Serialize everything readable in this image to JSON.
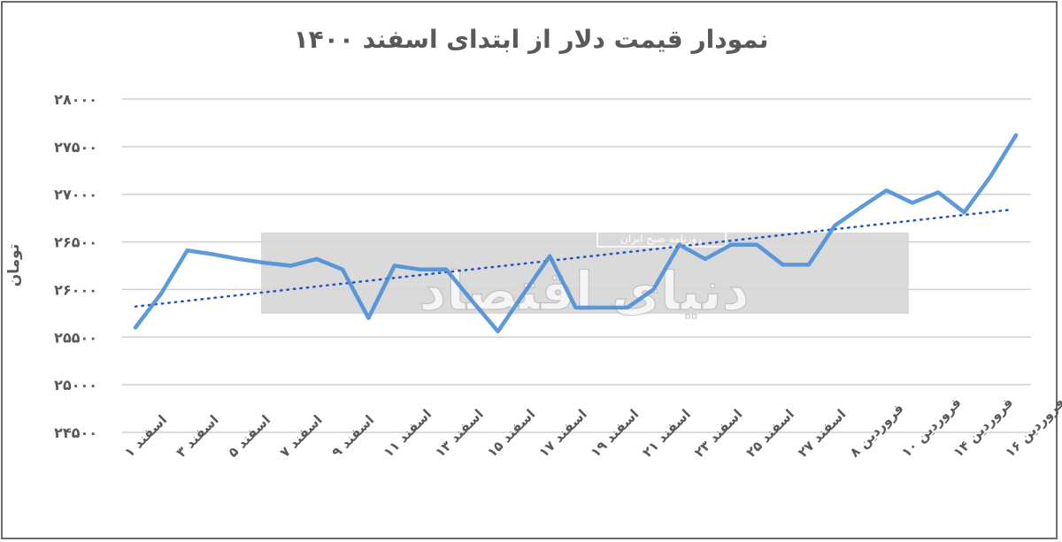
{
  "chart_data": {
    "type": "line",
    "title": "نمودار قیمت دلار از ابتدای اسفند ۱۴۰۰",
    "xlabel": "",
    "ylabel": "تومان",
    "ylim": [
      24500,
      28000
    ],
    "yticks": [
      28000,
      27500,
      27000,
      26500,
      26000,
      25500,
      25000,
      24500
    ],
    "ytick_labels": [
      "۲۸۰۰۰",
      "۲۷۵۰۰",
      "۲۷۰۰۰",
      "۲۶۵۰۰",
      "۲۶۰۰۰",
      "۲۵۵۰۰",
      "۲۵۰۰۰",
      "۲۴۵۰۰"
    ],
    "grid": true,
    "categories": [
      "اسفند ۱",
      "",
      "اسفند ۳",
      "",
      "اسفند ۵",
      "",
      "اسفند ۷",
      "",
      "اسفند ۹",
      "",
      "اسفند ۱۱",
      "",
      "اسفند ۱۳",
      "",
      "اسفند ۱۵",
      "",
      "اسفند ۱۷",
      "",
      "اسفند ۱۹",
      "",
      "اسفند ۲۱",
      "",
      "اسفند ۲۳",
      "",
      "اسفند ۲۵",
      "",
      "اسفند ۲۷",
      "",
      "فروردین ۸",
      "",
      "فروردین ۱۰",
      "",
      "فروردین ۱۴",
      "",
      "فروردین ۱۶"
    ],
    "series": [
      {
        "values": [
          25600,
          25960,
          26410,
          26370,
          26320,
          26280,
          26250,
          26320,
          26210,
          25700,
          26250,
          26210,
          26210,
          25880,
          25560,
          25960,
          26350,
          25810,
          25810,
          25810,
          26000,
          26470,
          26320,
          26470,
          26470,
          26260,
          26260,
          26670,
          26860,
          27040,
          26910,
          27020,
          26810,
          27180,
          27620
        ],
        "color": "#4a8fd8"
      }
    ],
    "trendline": {
      "type": "linear",
      "style": "dotted",
      "color": "#2255c4"
    }
  },
  "watermark": {
    "logo_text": "دنیای اقتصاد",
    "sub_text": "روزنامه صبح ایران"
  }
}
